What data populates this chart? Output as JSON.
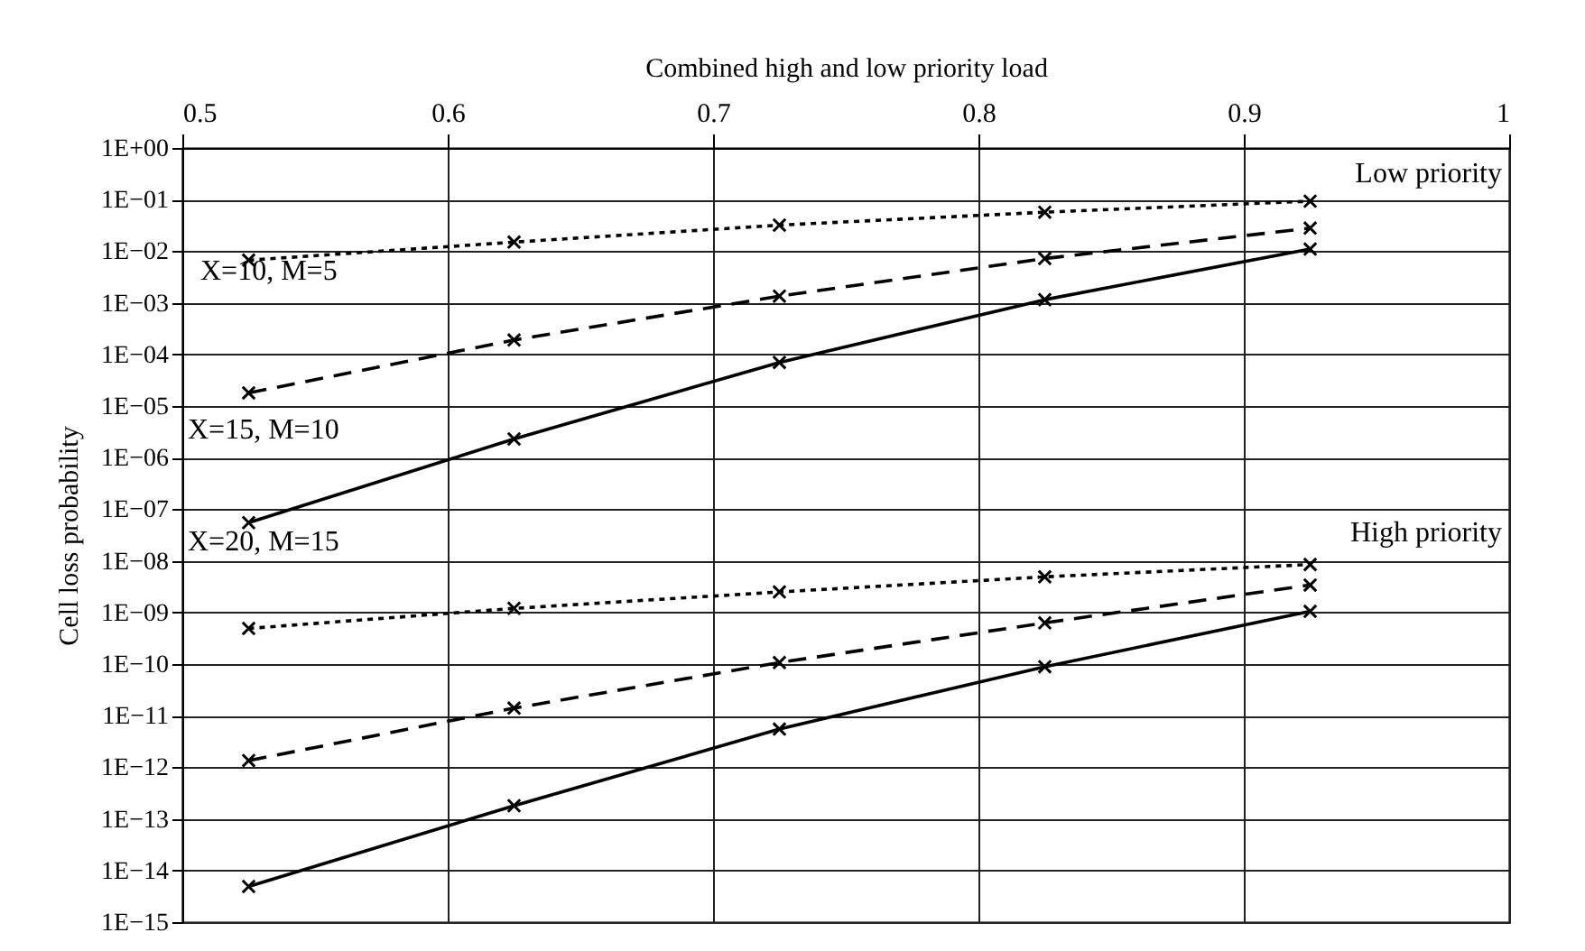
{
  "chart_data": {
    "type": "line",
    "xlabel": "Combined high and low priority load",
    "ylabel": "Cell loss probability",
    "log": "y",
    "grid": true,
    "marker": "cross",
    "x": [
      0.525,
      0.625,
      0.725,
      0.825,
      0.925
    ],
    "xlim": [
      0.5,
      1
    ],
    "xticks": [
      0.5,
      0.6,
      0.7,
      0.8,
      0.9,
      1
    ],
    "ylim": [
      1e-15,
      1
    ],
    "yticks": [
      {
        "value": 1,
        "label": "1E+00"
      },
      {
        "value": 0.1,
        "label": "1E−01"
      },
      {
        "value": 0.01,
        "label": "1E−02"
      },
      {
        "value": 0.001,
        "label": "1E−03"
      },
      {
        "value": 0.0001,
        "label": "1E−04"
      },
      {
        "value": 1e-05,
        "label": "1E−05"
      },
      {
        "value": 1e-06,
        "label": "1E−06"
      },
      {
        "value": 1e-07,
        "label": "1E−07"
      },
      {
        "value": 1e-08,
        "label": "1E−08"
      },
      {
        "value": 1e-09,
        "label": "1E−09"
      },
      {
        "value": 1e-10,
        "label": "1E−10"
      },
      {
        "value": 1e-11,
        "label": "1E−11"
      },
      {
        "value": 1e-12,
        "label": "1E−12"
      },
      {
        "value": 1e-13,
        "label": "1E−13"
      },
      {
        "value": 1e-14,
        "label": "1E−14"
      },
      {
        "value": 1e-15,
        "label": "1E−15"
      }
    ],
    "series": [
      {
        "color": "#000000",
        "line_style": "dotted",
        "values": [
          0.0067,
          0.015,
          0.032,
          0.057,
          0.093
        ]
      },
      {
        "color": "#000000",
        "line_style": "dashed",
        "values": [
          1.8e-05,
          0.00019,
          0.00135,
          0.0072,
          0.028
        ]
      },
      {
        "color": "#000000",
        "line_style": "solid",
        "values": [
          5.5e-08,
          2.3e-06,
          7e-05,
          0.00115,
          0.011
        ]
      },
      {
        "color": "#000000",
        "line_style": "dotted",
        "values": [
          4.9e-10,
          1.2e-09,
          2.5e-09,
          4.9e-09,
          8.5e-09
        ]
      },
      {
        "color": "#000000",
        "line_style": "dashed",
        "values": [
          1.35e-12,
          1.4e-11,
          1.07e-10,
          6.3e-10,
          3.4e-09
        ]
      },
      {
        "color": "#000000",
        "line_style": "solid",
        "values": [
          4.9e-15,
          1.8e-13,
          5.5e-12,
          8.9e-11,
          1.05e-09
        ]
      }
    ],
    "annotations": [
      "Low priority",
      "High priority",
      "X=10, M=5",
      "X=15, M=10",
      "X=20, M=15"
    ]
  }
}
